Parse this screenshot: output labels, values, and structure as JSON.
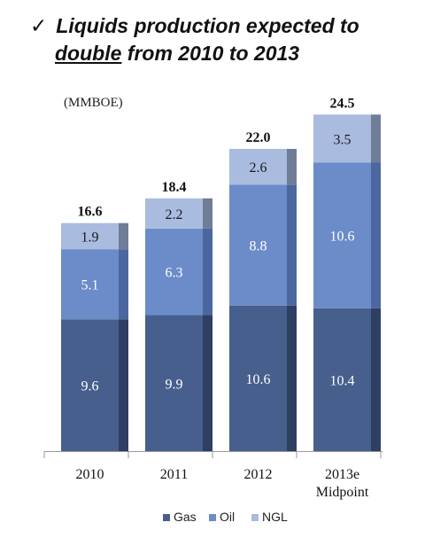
{
  "headline": {
    "check": "✓",
    "line1": "Liquids production expected to",
    "line2_emph": "double",
    "line2_rest": " from 2010 to 2013"
  },
  "chart_data": {
    "type": "bar",
    "stacked": true,
    "unit": "(MMBOE)",
    "categories": [
      [
        "2010"
      ],
      [
        "2011"
      ],
      [
        "2012"
      ],
      [
        "2013e",
        "Midpoint"
      ]
    ],
    "series": [
      {
        "name": "Gas",
        "values": [
          9.6,
          9.9,
          10.6,
          10.4
        ],
        "color": "#475f8c",
        "side": "#2e3f62"
      },
      {
        "name": "Oil",
        "values": [
          5.1,
          6.3,
          8.8,
          10.6
        ],
        "color": "#6b8cc8",
        "side": "#4c67a0"
      },
      {
        "name": "NGL",
        "values": [
          1.9,
          2.2,
          2.6,
          3.5
        ],
        "color": "#a9bbdf",
        "side": "#6f7d97"
      }
    ],
    "totals": [
      "16.6",
      "18.4",
      "22.0",
      "24.5"
    ],
    "ylim": [
      0,
      26
    ],
    "grid": false,
    "legend_position": "bottom-center"
  }
}
